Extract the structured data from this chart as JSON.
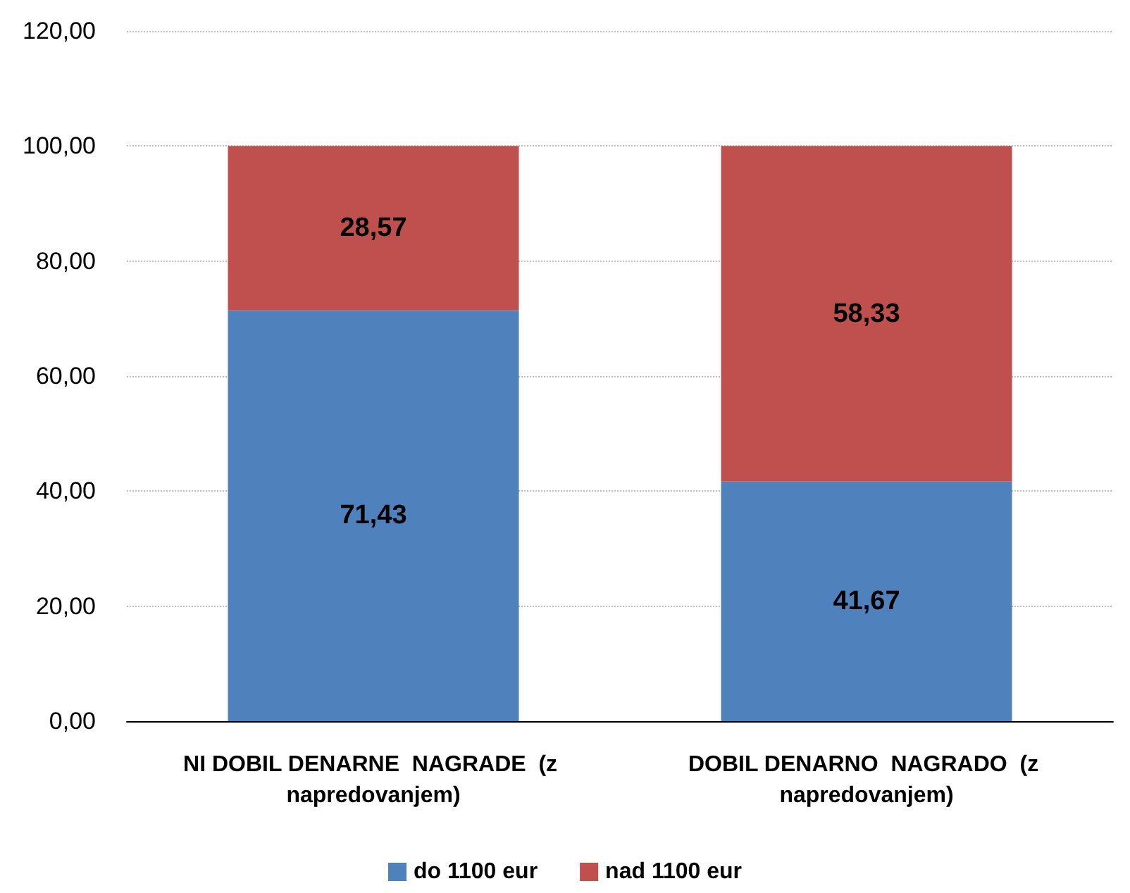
{
  "chart_data": {
    "type": "bar",
    "stacked": true,
    "categories": [
      "NI DOBIL DENARNE  NAGRADE  (z napredovanjem)",
      "DOBIL DENARNO  NAGRADO  (z napredovanjem)"
    ],
    "series": [
      {
        "name": "do 1100 eur",
        "color": "#4f81bd",
        "values": [
          71.43,
          41.67
        ],
        "value_labels": [
          "71,43",
          "41,67"
        ]
      },
      {
        "name": "nad 1100 eur",
        "color": "#c0504d",
        "values": [
          28.57,
          58.33
        ],
        "value_labels": [
          "28,57",
          "58,33"
        ]
      }
    ],
    "ylim": [
      0,
      120
    ],
    "yticks": [
      {
        "value": 0,
        "label": "0,00"
      },
      {
        "value": 20,
        "label": "20,00"
      },
      {
        "value": 40,
        "label": "40,00"
      },
      {
        "value": 60,
        "label": "60,00"
      },
      {
        "value": 80,
        "label": "80,00"
      },
      {
        "value": 100,
        "label": "100,00"
      },
      {
        "value": 120,
        "label": "120,00"
      }
    ],
    "grid": "y",
    "legend": "bottom"
  }
}
